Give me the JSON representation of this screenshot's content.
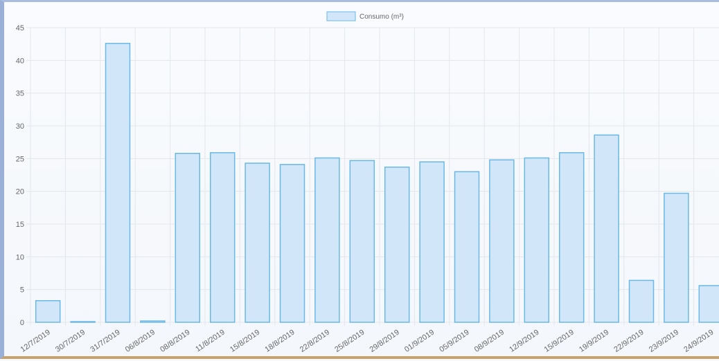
{
  "chart_data": {
    "type": "bar",
    "legend": {
      "label": "Consumo (m³)",
      "placement": "top-center"
    },
    "ylim": [
      0,
      45
    ],
    "yticks": [
      0,
      5,
      10,
      15,
      20,
      25,
      30,
      35,
      40,
      45
    ],
    "categories": [
      "12/7/2019",
      "30/7/2019",
      "31/7/2019",
      "06/8/2019",
      "08/8/2019",
      "11/8/2019",
      "15/8/2019",
      "18/8/2019",
      "22/8/2019",
      "25/8/2019",
      "29/8/2019",
      "01/9/2019",
      "05/9/2019",
      "08/9/2019",
      "12/9/2019",
      "15/9/2019",
      "19/9/2019",
      "22/9/2019",
      "23/9/2019",
      "24/9/2019"
    ],
    "series": [
      {
        "name": "Consumo (m³)",
        "values": [
          3.3,
          0.1,
          42.6,
          0.2,
          25.8,
          25.9,
          24.3,
          24.1,
          25.1,
          24.7,
          23.7,
          24.5,
          23.0,
          24.8,
          25.1,
          25.9,
          28.6,
          6.4,
          19.7,
          5.6
        ]
      }
    ],
    "grid": true,
    "colors": {
      "bar_fill": "#d1e6f8",
      "bar_stroke": "#6ab8e6",
      "grid": "#e3e6ea"
    }
  }
}
